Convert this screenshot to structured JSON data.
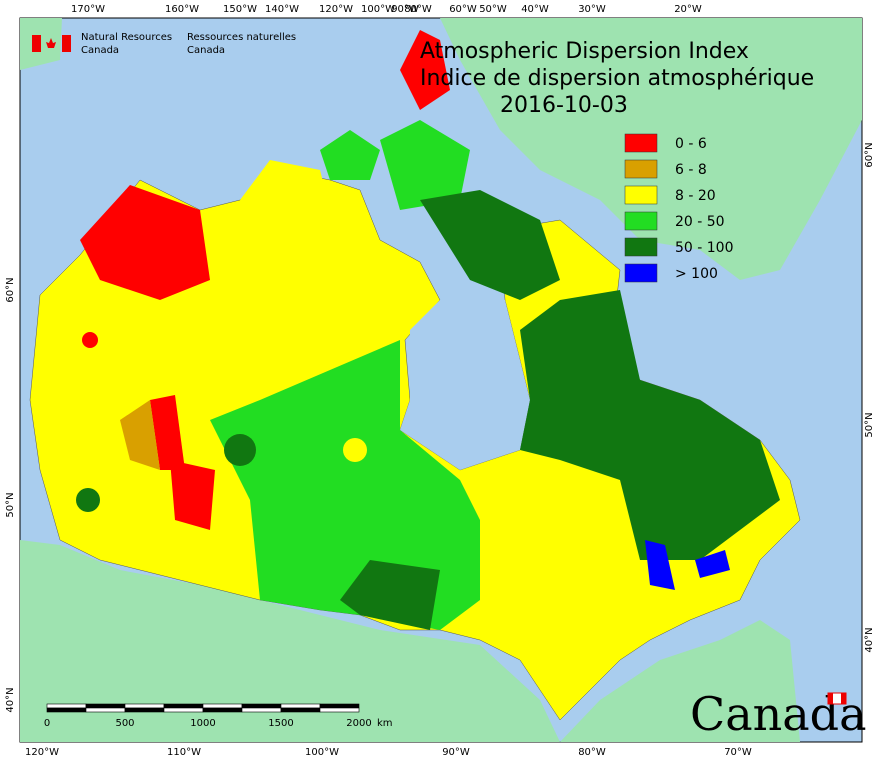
{
  "header": {
    "title_en": "Atmospheric Dispersion Index",
    "title_fr": "Indice de dispersion atmosphérique",
    "date": "2016-10-03"
  },
  "agency": {
    "en": [
      "Natural Resources",
      "Canada"
    ],
    "fr": [
      "Ressources naturelles",
      "Canada"
    ]
  },
  "legend": [
    {
      "label": "0 - 6",
      "color": "#ff0000"
    },
    {
      "label": "6 - 8",
      "color": "#d9a000"
    },
    {
      "label": "8 - 20",
      "color": "#ffff00"
    },
    {
      "label": "20 - 50",
      "color": "#22dd22"
    },
    {
      "label": "50 - 100",
      "color": "#117711"
    },
    {
      "label": "> 100",
      "color": "#0000ff"
    }
  ],
  "top_axis": [
    "170°W",
    "160°W",
    "150°W",
    "140°W",
    "120°W",
    "100°W",
    "90°W",
    "80°W",
    "60°W",
    "50°W",
    "40°W",
    "30°W",
    "20°W"
  ],
  "bottom_axis": [
    "120°W",
    "110°W",
    "100°W",
    "90°W",
    "80°W",
    "70°W"
  ],
  "left_axis": [
    "60°N",
    "50°N",
    "40°N"
  ],
  "right_axis": [
    "60°N",
    "50°N",
    "40°N"
  ],
  "scale_bar": {
    "labels": [
      "0",
      "500",
      "1000",
      "1500",
      "2000"
    ],
    "unit": "km"
  },
  "wordmark": "Canada"
}
